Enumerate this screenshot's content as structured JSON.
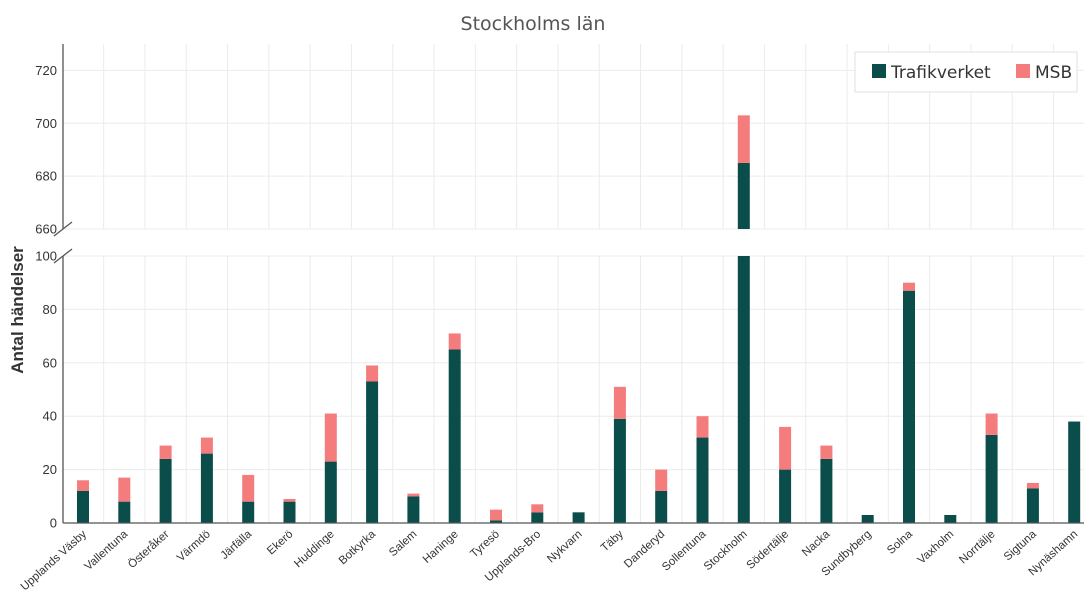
{
  "chart_data": {
    "type": "bar",
    "stacked": true,
    "title": "Stockholms län",
    "ylabel": "Antal händelser",
    "xlabel": "",
    "axis_break": [
      100,
      660
    ],
    "lower_ylim": [
      0,
      100
    ],
    "upper_ylim": [
      660,
      730
    ],
    "lower_ticks": [
      "0",
      "20",
      "40",
      "60",
      "80",
      "100"
    ],
    "upper_ticks": [
      "660",
      "680",
      "700",
      "720"
    ],
    "grid": true,
    "legend_position": "top-right",
    "categories": [
      "Upplands Väsby",
      "Vallentuna",
      "Österåker",
      "Värmdö",
      "Järfälla",
      "Ekerö",
      "Huddinge",
      "Botkyrka",
      "Salem",
      "Haninge",
      "Tyresö",
      "Upplands-Bro",
      "Nykvarn",
      "Täby",
      "Danderyd",
      "Sollentuna",
      "Stockholm",
      "Södertälje",
      "Nacka",
      "Sundbyberg",
      "Solna",
      "Vaxholm",
      "Norrtälje",
      "Sigtuna",
      "Nynäshamn"
    ],
    "series": [
      {
        "name": "Trafikverket",
        "color": "#0b4d4a",
        "values": [
          12,
          8,
          24,
          26,
          8,
          8,
          23,
          53,
          10,
          65,
          1,
          4,
          4,
          39,
          12,
          32,
          685,
          20,
          24,
          3,
          87,
          3,
          33,
          13,
          38
        ]
      },
      {
        "name": "MSB",
        "color": "#f47c7c",
        "values": [
          4,
          9,
          5,
          6,
          10,
          1,
          18,
          6,
          1,
          6,
          4,
          3,
          0,
          12,
          8,
          8,
          18,
          16,
          5,
          0,
          3,
          0,
          8,
          2,
          0
        ]
      }
    ]
  }
}
